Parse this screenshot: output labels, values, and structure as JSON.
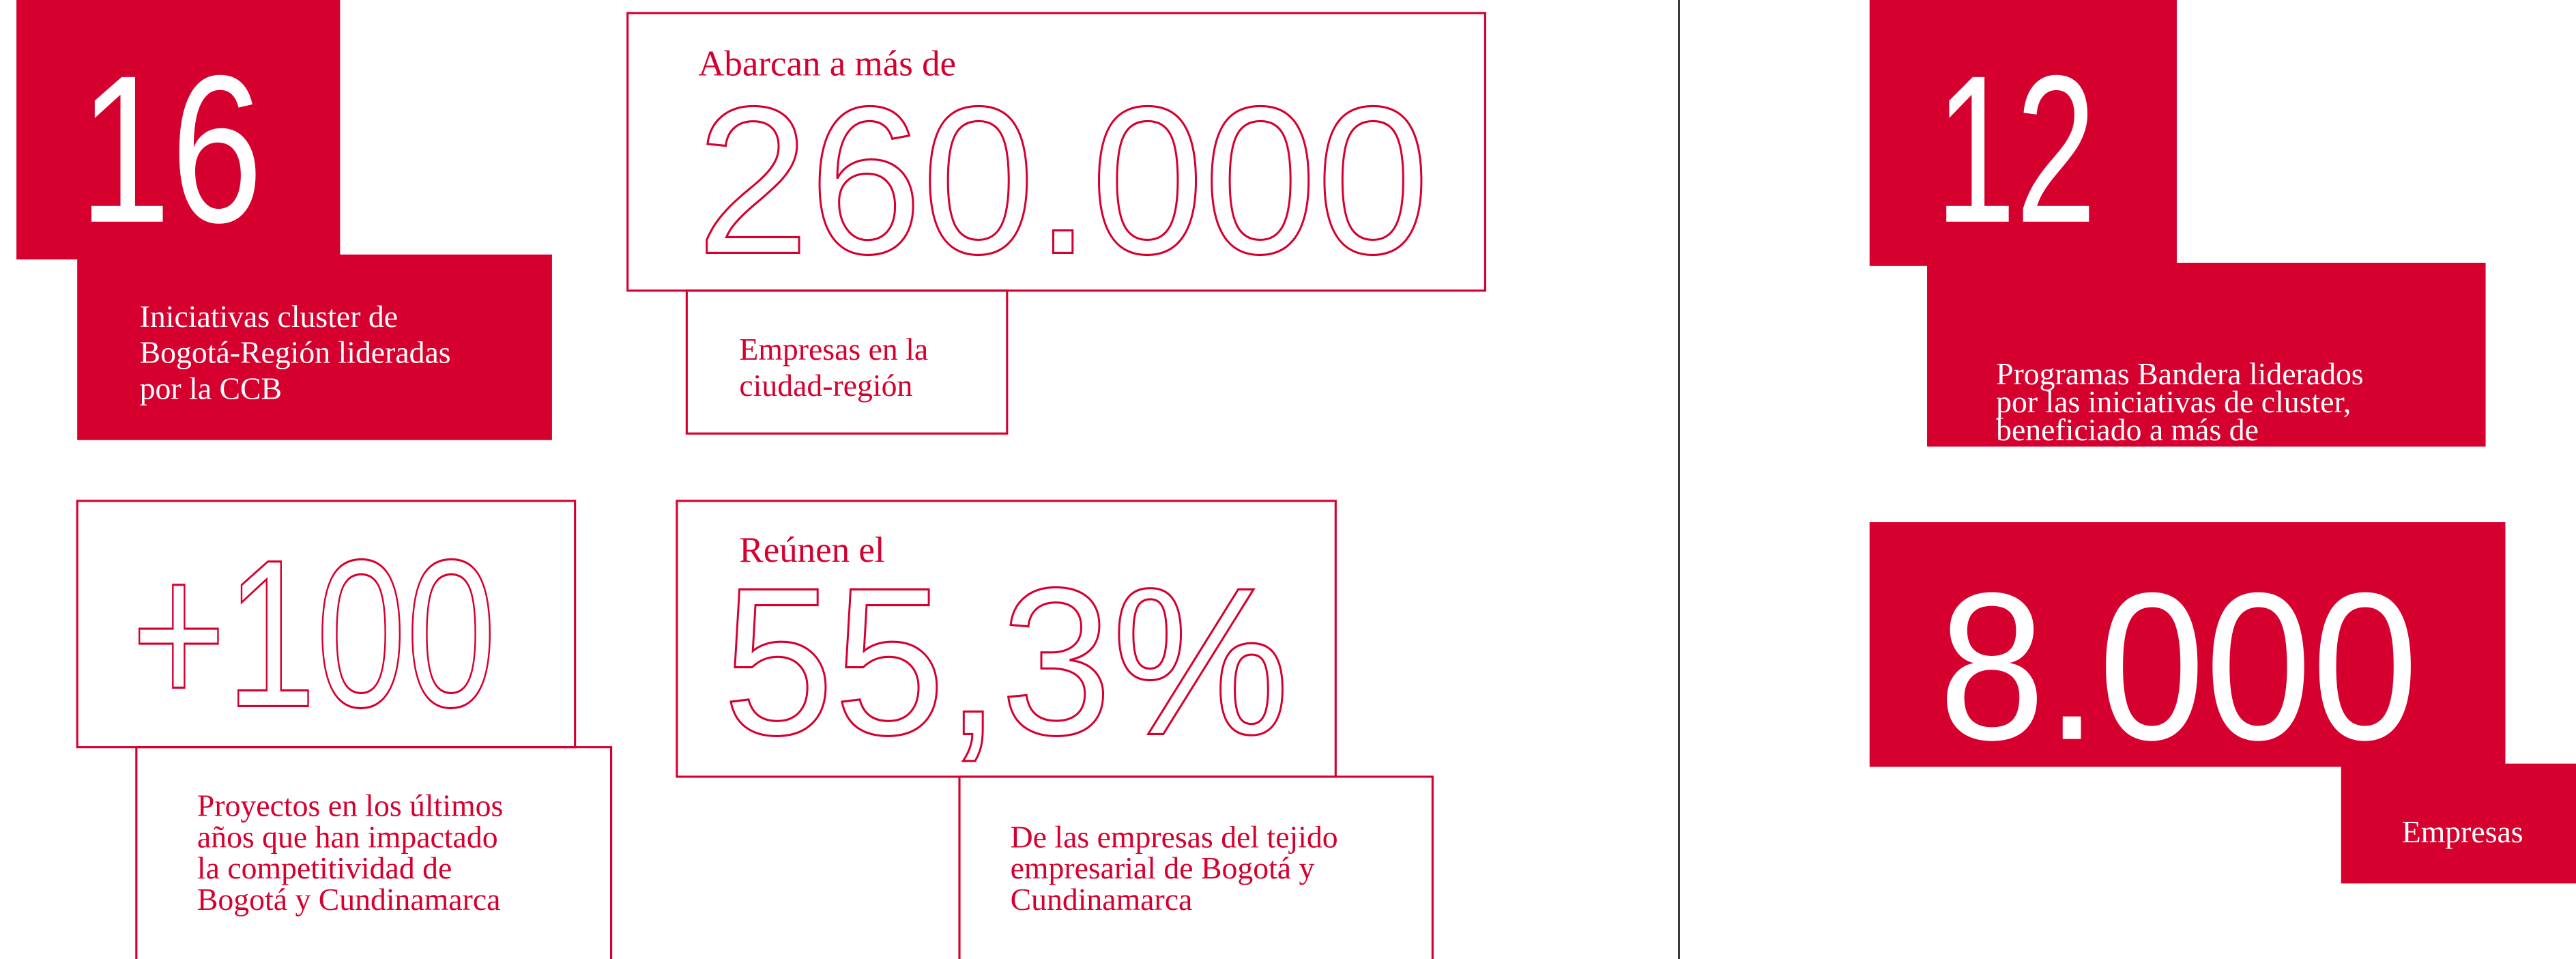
{
  "stats": [
    {
      "number": "16",
      "caption": [
        "Iniciativas cluster de",
        "Bogotá-Región lideradas",
        "por la CCB"
      ]
    },
    {
      "lead": "Abarcan a más de",
      "number": "260.000",
      "caption": [
        "Empresas en la",
        "ciudad-región"
      ]
    },
    {
      "number": "+100",
      "caption": [
        "Proyectos en los últimos",
        "años que han impactado",
        "la competitividad de",
        "Bogotá y Cundinamarca"
      ]
    },
    {
      "lead": "Reúnen el",
      "number": "55,3%",
      "caption": [
        "De las empresas del tejido",
        "empresarial de Bogotá y",
        "Cundinamarca"
      ]
    },
    {
      "number": "12",
      "caption": [
        "Programas Bandera liderados",
        "por las iniciativas de cluster,",
        "beneficiado a más de"
      ]
    },
    {
      "number": "8.000",
      "caption": [
        "Empresas"
      ]
    }
  ]
}
